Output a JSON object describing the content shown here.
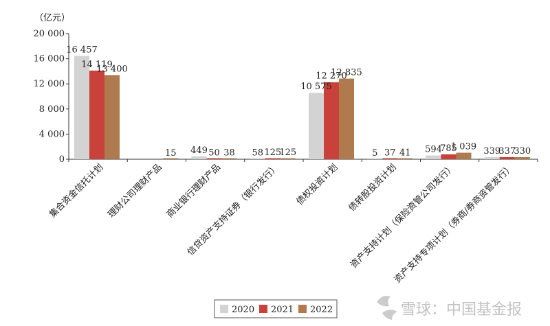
{
  "chart_data": {
    "type": "bar",
    "unit_label": "（亿元）",
    "categories": [
      "集合资金信托计划",
      "理财公司理财产品",
      "商业银行理财产品",
      "信贷资产支持证券（银行发行）",
      "债权投资计划",
      "债转股投资计划",
      "资产支持计划（保险资管公司发行）",
      "资产支持专项计划（券商/券商资管发行）"
    ],
    "series": [
      {
        "name": "2020",
        "color": "#d3d3d3",
        "values": [
          16457,
          null,
          449,
          58,
          10575,
          5,
          594,
          339
        ],
        "labels": [
          "16 457",
          "",
          "449",
          "58",
          "10 575",
          "5",
          "594",
          "339"
        ]
      },
      {
        "name": "2021",
        "color": "#c8413a",
        "values": [
          14119,
          null,
          50,
          125,
          12270,
          37,
          785,
          337
        ],
        "labels": [
          "14 119",
          "",
          "50",
          "125",
          "12 270",
          "37",
          "785",
          "337"
        ]
      },
      {
        "name": "2022",
        "color": "#b07a4f",
        "values": [
          13400,
          15,
          38,
          125,
          12835,
          41,
          1039,
          330
        ],
        "labels": [
          "13 400",
          "15",
          "38",
          "125",
          "12 835",
          "41",
          "1 039",
          "330"
        ]
      }
    ],
    "ylim": [
      0,
      20000
    ],
    "yticks": [
      0,
      4000,
      8000,
      12000,
      16000,
      20000
    ],
    "ytick_labels": [
      "0",
      "4 000",
      "8 000",
      "12 000",
      "16 000",
      "20 000"
    ],
    "grid": false,
    "legend_position": "bottom-center"
  },
  "watermark": {
    "text": "雪球：中国基金报",
    "icon": "snowball-logo-icon"
  }
}
